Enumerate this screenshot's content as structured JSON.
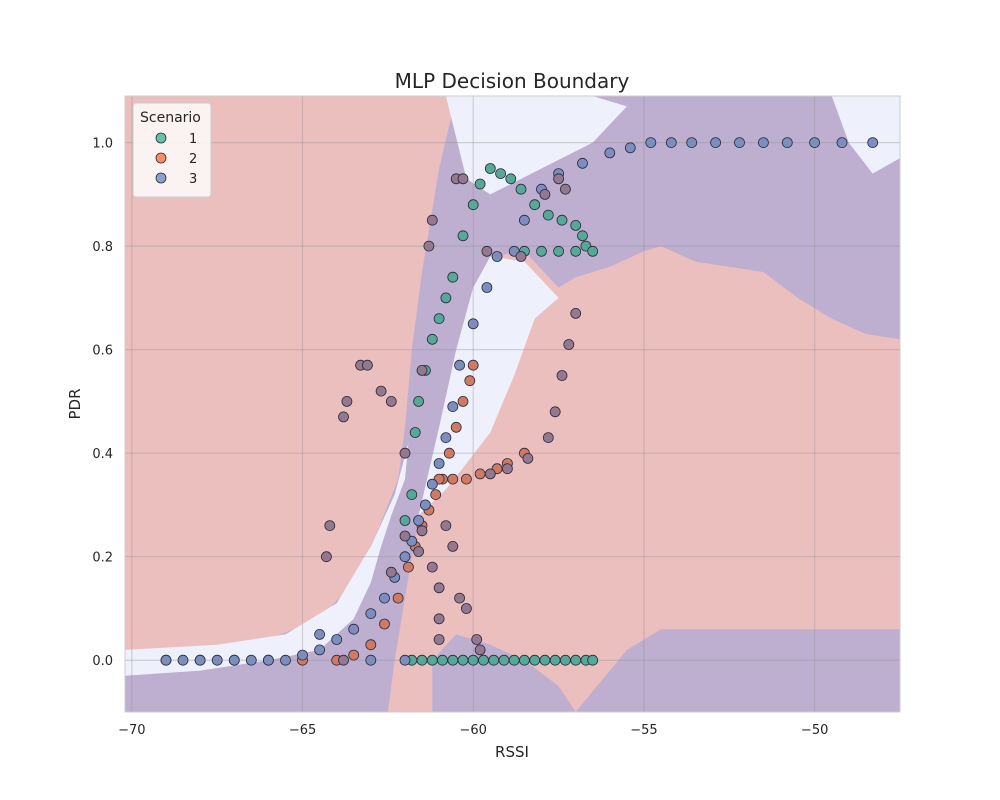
{
  "chart_data": {
    "type": "scatter",
    "title": "MLP Decision Boundary",
    "xlabel": "RSSI",
    "ylabel": "PDR",
    "xlim": [
      -70.2,
      -47.5
    ],
    "ylim": [
      -0.1,
      1.09
    ],
    "xticks": [
      -70,
      -65,
      -60,
      -55,
      -50
    ],
    "xtick_labels": [
      "−70",
      "−65",
      "−60",
      "−55",
      "−50"
    ],
    "yticks": [
      0.0,
      0.2,
      0.4,
      0.6,
      0.8,
      1.0
    ],
    "ytick_labels": [
      "0.0",
      "0.2",
      "0.4",
      "0.6",
      "0.8",
      "1.0"
    ],
    "grid": true,
    "legend": {
      "title": "Scenario",
      "placement": "top-left",
      "entries": [
        {
          "label": "1",
          "color": "#66c2a5"
        },
        {
          "label": "2",
          "color": "#fc8d62"
        },
        {
          "label": "3",
          "color": "#8da0cb"
        }
      ]
    },
    "region_colors": {
      "class_1": "#d98080",
      "class_2": "#eef1fb",
      "class_3": "#8f9fe3"
    },
    "regions": [
      {
        "class": "class_3",
        "polygon": [
          [
            -62.5,
            -0.1
          ],
          [
            -62.3,
            0.0
          ],
          [
            -61.8,
            0.2
          ],
          [
            -61.5,
            0.3
          ],
          [
            -61.0,
            0.4
          ],
          [
            -60.6,
            0.5
          ],
          [
            -60.2,
            0.6
          ],
          [
            -59.9,
            0.7
          ],
          [
            -59.5,
            0.78
          ],
          [
            -58.5,
            0.79
          ],
          [
            -57.5,
            0.72
          ],
          [
            -57.0,
            0.74
          ],
          [
            -56.0,
            0.76
          ],
          [
            -55.0,
            0.79
          ],
          [
            -54.5,
            0.8
          ],
          [
            -53.5,
            0.77
          ],
          [
            -51.5,
            0.75
          ],
          [
            -50.5,
            0.7
          ],
          [
            -49.5,
            0.66
          ],
          [
            -48.5,
            0.63
          ],
          [
            -47.5,
            0.62
          ],
          [
            -47.5,
            1.09
          ],
          [
            -60.5,
            1.09
          ],
          [
            -61.0,
            0.95
          ],
          [
            -61.5,
            0.75
          ],
          [
            -61.8,
            0.6
          ],
          [
            -62.0,
            0.45
          ],
          [
            -62.2,
            0.35
          ],
          [
            -62.8,
            0.25
          ],
          [
            -63.5,
            0.15
          ],
          [
            -64.5,
            0.08
          ],
          [
            -66.0,
            0.04
          ],
          [
            -68.0,
            0.02
          ],
          [
            -70.2,
            0.01
          ],
          [
            -70.2,
            -0.1
          ]
        ]
      },
      {
        "class": "class_2",
        "polygon": [
          [
            -70.2,
            -0.03
          ],
          [
            -68.0,
            -0.02
          ],
          [
            -66.0,
            0.0
          ],
          [
            -64.5,
            0.02
          ],
          [
            -63.5,
            0.08
          ],
          [
            -63.0,
            0.15
          ],
          [
            -62.7,
            0.22
          ],
          [
            -62.4,
            0.28
          ],
          [
            -62.0,
            0.35
          ],
          [
            -61.9,
            0.42
          ],
          [
            -62.3,
            0.32
          ],
          [
            -63.0,
            0.22
          ],
          [
            -64.0,
            0.11
          ],
          [
            -65.5,
            0.05
          ],
          [
            -67.5,
            0.03
          ],
          [
            -70.2,
            0.02
          ]
        ]
      },
      {
        "class": "class_2",
        "polygon": [
          [
            -61.6,
            0.28
          ],
          [
            -61.0,
            0.45
          ],
          [
            -60.5,
            0.6
          ],
          [
            -60.0,
            0.72
          ],
          [
            -59.5,
            0.78
          ],
          [
            -58.5,
            0.77
          ],
          [
            -57.5,
            0.7
          ],
          [
            -58.2,
            0.66
          ],
          [
            -58.8,
            0.55
          ],
          [
            -59.5,
            0.44
          ],
          [
            -60.2,
            0.38
          ],
          [
            -60.8,
            0.33
          ]
        ]
      },
      {
        "class": "class_2",
        "polygon": [
          [
            -60.8,
            1.09
          ],
          [
            -56.5,
            1.09
          ],
          [
            -55.5,
            1.07
          ],
          [
            -56.5,
            1.0
          ],
          [
            -58.0,
            0.95
          ],
          [
            -59.5,
            0.9
          ],
          [
            -60.2,
            0.93
          ]
        ]
      },
      {
        "class": "class_2",
        "polygon": [
          [
            -49.5,
            1.09
          ],
          [
            -47.5,
            1.09
          ],
          [
            -47.5,
            0.97
          ],
          [
            -48.3,
            0.94
          ],
          [
            -49.0,
            1.0
          ]
        ]
      },
      {
        "class": "class_3",
        "polygon": [
          [
            -61.2,
            -0.1
          ],
          [
            -61.2,
            0.0
          ],
          [
            -60.5,
            0.05
          ],
          [
            -59.5,
            0.03
          ],
          [
            -58.5,
            0.0
          ],
          [
            -57.5,
            -0.05
          ],
          [
            -57.0,
            -0.1
          ]
        ]
      },
      {
        "class": "class_3",
        "polygon": [
          [
            -57.0,
            -0.1
          ],
          [
            -56.5,
            -0.06
          ],
          [
            -55.5,
            0.02
          ],
          [
            -54.5,
            0.06
          ],
          [
            -52.0,
            0.06
          ],
          [
            -50.0,
            0.06
          ],
          [
            -47.5,
            0.06
          ],
          [
            -47.5,
            -0.1
          ]
        ]
      }
    ],
    "series": [
      {
        "name": "1",
        "color": "#56a899",
        "points": [
          [
            -61.8,
            0.0
          ],
          [
            -61.5,
            0.0
          ],
          [
            -61.2,
            0.0
          ],
          [
            -60.9,
            0.0
          ],
          [
            -60.6,
            0.0
          ],
          [
            -60.3,
            0.0
          ],
          [
            -60.0,
            0.0
          ],
          [
            -59.7,
            0.0
          ],
          [
            -59.4,
            0.0
          ],
          [
            -59.1,
            0.0
          ],
          [
            -58.8,
            0.0
          ],
          [
            -58.5,
            0.0
          ],
          [
            -58.2,
            0.0
          ],
          [
            -57.9,
            0.0
          ],
          [
            -57.6,
            0.0
          ],
          [
            -57.3,
            0.0
          ],
          [
            -57.0,
            0.0
          ],
          [
            -56.7,
            0.0
          ],
          [
            -56.5,
            0.0
          ],
          [
            -61.7,
            0.44
          ],
          [
            -61.6,
            0.5
          ],
          [
            -61.4,
            0.56
          ],
          [
            -61.2,
            0.62
          ],
          [
            -61.0,
            0.66
          ],
          [
            -60.8,
            0.7
          ],
          [
            -60.6,
            0.74
          ],
          [
            -60.3,
            0.82
          ],
          [
            -60.0,
            0.88
          ],
          [
            -59.8,
            0.92
          ],
          [
            -59.5,
            0.95
          ],
          [
            -59.2,
            0.94
          ],
          [
            -58.9,
            0.93
          ],
          [
            -58.6,
            0.91
          ],
          [
            -58.2,
            0.88
          ],
          [
            -57.8,
            0.86
          ],
          [
            -57.4,
            0.85
          ],
          [
            -57.0,
            0.84
          ],
          [
            -56.8,
            0.82
          ],
          [
            -56.7,
            0.8
          ],
          [
            -56.5,
            0.79
          ],
          [
            -57.0,
            0.79
          ],
          [
            -57.5,
            0.79
          ],
          [
            -58.0,
            0.79
          ],
          [
            -58.5,
            0.79
          ],
          [
            -61.8,
            0.32
          ],
          [
            -62.0,
            0.27
          ]
        ]
      },
      {
        "class": "2",
        "name": "2",
        "color": "#d07a63",
        "points": [
          [
            -69.0,
            0.0
          ],
          [
            -68.0,
            0.0
          ],
          [
            -67.0,
            0.0
          ],
          [
            -66.0,
            0.0
          ],
          [
            -65.0,
            0.0
          ],
          [
            -64.0,
            0.0
          ],
          [
            -63.5,
            0.01
          ],
          [
            -63.0,
            0.03
          ],
          [
            -62.6,
            0.07
          ],
          [
            -62.2,
            0.12
          ],
          [
            -61.9,
            0.18
          ],
          [
            -61.7,
            0.22
          ],
          [
            -61.5,
            0.26
          ],
          [
            -61.3,
            0.29
          ],
          [
            -61.1,
            0.32
          ],
          [
            -60.9,
            0.35
          ],
          [
            -60.7,
            0.4
          ],
          [
            -60.5,
            0.45
          ],
          [
            -60.3,
            0.5
          ],
          [
            -60.1,
            0.54
          ],
          [
            -60.0,
            0.57
          ],
          [
            -61.0,
            0.35
          ],
          [
            -60.6,
            0.35
          ],
          [
            -60.2,
            0.35
          ],
          [
            -59.8,
            0.36
          ],
          [
            -59.3,
            0.37
          ],
          [
            -59.0,
            0.38
          ],
          [
            -58.5,
            0.4
          ]
        ]
      },
      {
        "name": "3",
        "color": "#7b8ebf",
        "points": [
          [
            -69.0,
            0.0
          ],
          [
            -68.5,
            0.0
          ],
          [
            -68.0,
            0.0
          ],
          [
            -67.5,
            0.0
          ],
          [
            -67.0,
            0.0
          ],
          [
            -66.5,
            0.0
          ],
          [
            -66.0,
            0.0
          ],
          [
            -65.5,
            0.0
          ],
          [
            -65.0,
            0.01
          ],
          [
            -64.5,
            0.02
          ],
          [
            -64.0,
            0.04
          ],
          [
            -63.5,
            0.06
          ],
          [
            -63.0,
            0.09
          ],
          [
            -62.6,
            0.12
          ],
          [
            -62.3,
            0.16
          ],
          [
            -62.0,
            0.2
          ],
          [
            -61.8,
            0.23
          ],
          [
            -61.6,
            0.27
          ],
          [
            -61.4,
            0.3
          ],
          [
            -61.2,
            0.34
          ],
          [
            -61.0,
            0.38
          ],
          [
            -60.8,
            0.43
          ],
          [
            -60.6,
            0.49
          ],
          [
            -60.4,
            0.57
          ],
          [
            -60.0,
            0.65
          ],
          [
            -59.6,
            0.72
          ],
          [
            -59.3,
            0.78
          ],
          [
            -58.8,
            0.79
          ],
          [
            -58.5,
            0.85
          ],
          [
            -58.0,
            0.91
          ],
          [
            -57.5,
            0.94
          ],
          [
            -56.8,
            0.96
          ],
          [
            -56.0,
            0.98
          ],
          [
            -55.4,
            0.99
          ],
          [
            -54.8,
            1.0
          ],
          [
            -54.2,
            1.0
          ],
          [
            -53.6,
            1.0
          ],
          [
            -52.9,
            1.0
          ],
          [
            -52.2,
            1.0
          ],
          [
            -51.5,
            1.0
          ],
          [
            -50.8,
            1.0
          ],
          [
            -50.0,
            1.0
          ],
          [
            -49.2,
            1.0
          ],
          [
            -48.3,
            1.0
          ],
          [
            -64.5,
            0.05
          ],
          [
            -63.0,
            0.0
          ],
          [
            -62.0,
            0.0
          ]
        ]
      },
      {
        "name": "",
        "color": "#93788f",
        "points": [
          [
            -63.8,
            0.47
          ],
          [
            -63.7,
            0.5
          ],
          [
            -63.3,
            0.57
          ],
          [
            -63.1,
            0.57
          ],
          [
            -62.7,
            0.52
          ],
          [
            -62.4,
            0.5
          ],
          [
            -62.0,
            0.4
          ],
          [
            -61.5,
            0.56
          ],
          [
            -61.3,
            0.8
          ],
          [
            -61.2,
            0.85
          ],
          [
            -60.5,
            0.93
          ],
          [
            -60.3,
            0.93
          ],
          [
            -64.3,
            0.2
          ],
          [
            -64.2,
            0.26
          ],
          [
            -63.8,
            0.0
          ],
          [
            -62.0,
            0.24
          ],
          [
            -61.6,
            0.21
          ],
          [
            -61.2,
            0.18
          ],
          [
            -61.0,
            0.14
          ],
          [
            -61.0,
            0.08
          ],
          [
            -61.0,
            0.04
          ],
          [
            -60.4,
            0.12
          ],
          [
            -60.2,
            0.1
          ],
          [
            -59.9,
            0.04
          ],
          [
            -59.8,
            0.02
          ],
          [
            -60.6,
            0.22
          ],
          [
            -60.8,
            0.26
          ],
          [
            -59.5,
            0.36
          ],
          [
            -59.0,
            0.37
          ],
          [
            -58.4,
            0.39
          ],
          [
            -57.8,
            0.43
          ],
          [
            -57.6,
            0.48
          ],
          [
            -57.4,
            0.55
          ],
          [
            -57.2,
            0.61
          ],
          [
            -57.0,
            0.67
          ],
          [
            -57.5,
            0.93
          ],
          [
            -57.3,
            0.91
          ],
          [
            -57.9,
            0.9
          ],
          [
            -59.6,
            0.79
          ],
          [
            -58.6,
            0.78
          ],
          [
            -61.5,
            0.25
          ],
          [
            -62.4,
            0.17
          ]
        ]
      }
    ]
  }
}
